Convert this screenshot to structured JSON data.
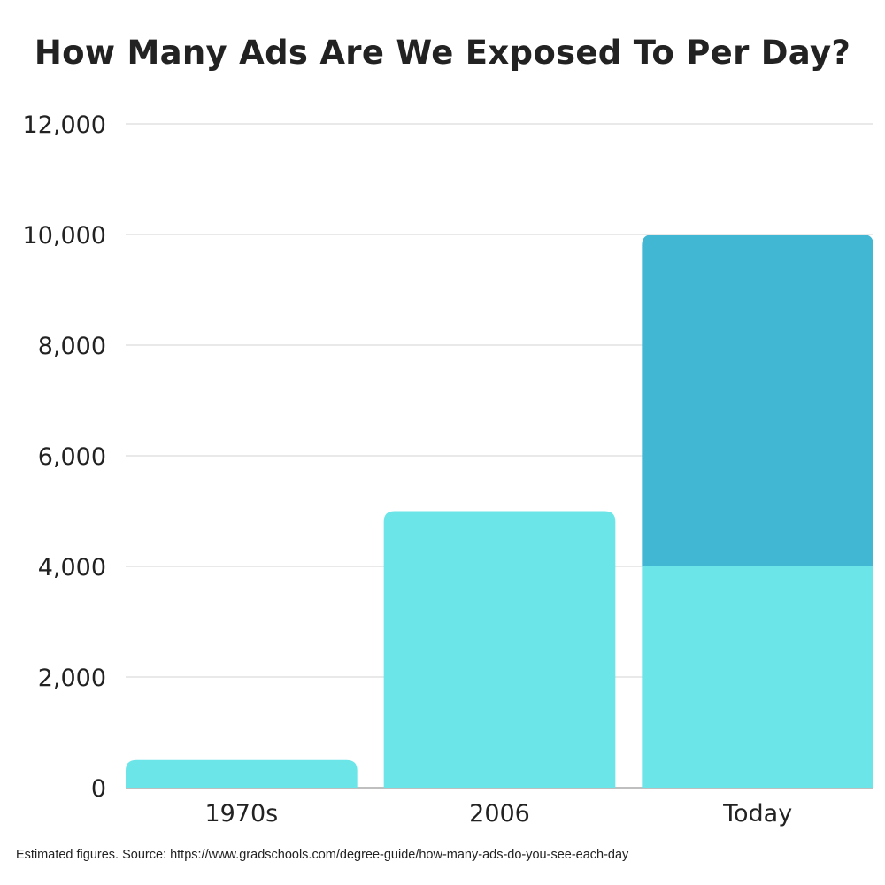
{
  "chart_data": {
    "type": "bar",
    "stacked": true,
    "title": "How Many Ads Are We Exposed To Per Day?",
    "xlabel": "",
    "ylabel": "",
    "categories": [
      "1970s",
      "2006",
      "Today"
    ],
    "series": [
      {
        "values": [
          500,
          5000,
          4000
        ],
        "color": "#6ce5e8"
      },
      {
        "values": [
          0,
          0,
          6000
        ],
        "color": "#42b7d4"
      }
    ],
    "ylim": [
      0,
      12000
    ],
    "yticks": [
      0,
      2000,
      4000,
      6000,
      8000,
      10000,
      12000
    ],
    "ytick_labels": [
      "0",
      "2,000",
      "4,000",
      "6,000",
      "8,000",
      "10,000",
      "12,000"
    ],
    "grid": true,
    "legend": "none"
  },
  "footnote": "Estimated figures. Source: https://www.gradschools.com/degree-guide/how-many-ads-do-you-see-each-day"
}
